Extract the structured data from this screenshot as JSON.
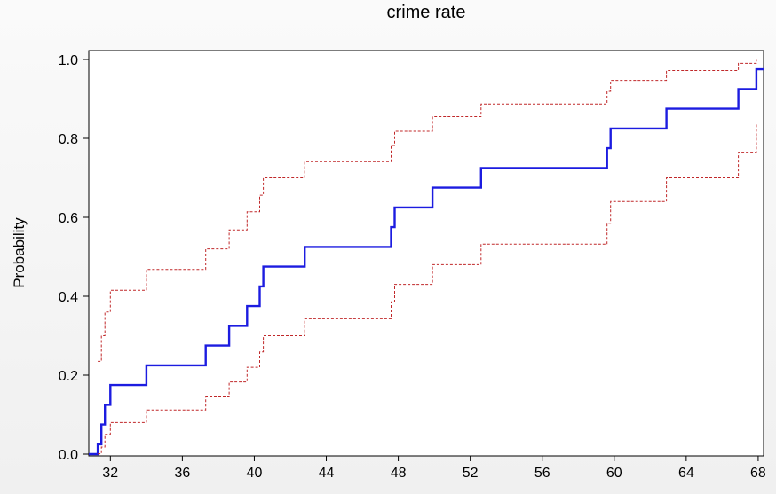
{
  "chart_data": {
    "type": "line",
    "title": "crime rate",
    "xlabel": "",
    "ylabel": "Probability",
    "xlim": [
      30.8,
      68.3
    ],
    "ylim": [
      0,
      1
    ],
    "xticks": [
      32,
      36,
      40,
      44,
      48,
      52,
      56,
      60,
      64,
      68
    ],
    "yticks": [
      0.0,
      0.2,
      0.4,
      0.6,
      0.8,
      1.0
    ],
    "xtick_labels": [
      "32",
      "36",
      "40",
      "44",
      "48",
      "52",
      "56",
      "60",
      "64",
      "68"
    ],
    "ytick_labels": [
      "0.0",
      "0.2",
      "0.4",
      "0.6",
      "0.8",
      "1.0"
    ],
    "grid": false,
    "colors": {
      "estimate": "#1c1ce0",
      "bounds": "#c0282a",
      "frame": "#000000"
    },
    "series": [
      {
        "role": "estimate",
        "style": "solid",
        "x": [
          30.8,
          31.3,
          31.5,
          31.7,
          32.0,
          34.0,
          37.3,
          38.6,
          39.6,
          40.3,
          40.5,
          42.8,
          47.6,
          47.8,
          49.9,
          52.6,
          59.6,
          59.8,
          62.9,
          66.9,
          67.9,
          68.3
        ],
        "y": [
          0.0,
          0.025,
          0.075,
          0.125,
          0.175,
          0.225,
          0.275,
          0.325,
          0.375,
          0.425,
          0.475,
          0.525,
          0.575,
          0.625,
          0.675,
          0.725,
          0.775,
          0.825,
          0.875,
          0.925,
          0.975,
          0.975
        ]
      },
      {
        "role": "upper",
        "style": "dashed",
        "x": [
          31.3,
          31.5,
          31.7,
          32.0,
          34.0,
          37.3,
          38.6,
          39.6,
          40.3,
          40.5,
          42.8,
          47.6,
          47.8,
          49.9,
          52.6,
          59.6,
          59.8,
          62.9,
          66.9,
          67.9
        ],
        "y": [
          0.235,
          0.3,
          0.36,
          0.415,
          0.468,
          0.52,
          0.568,
          0.614,
          0.656,
          0.7,
          0.741,
          0.782,
          0.818,
          0.855,
          0.887,
          0.919,
          0.947,
          0.972,
          0.99,
          0.999
        ]
      },
      {
        "role": "lower",
        "style": "dashed",
        "x": [
          31.3,
          31.5,
          31.7,
          32.0,
          34.0,
          37.3,
          38.6,
          39.6,
          40.3,
          40.5,
          42.8,
          47.6,
          47.8,
          49.9,
          52.6,
          59.6,
          59.8,
          62.9,
          66.9,
          67.9
        ],
        "y": [
          0.001,
          0.018,
          0.05,
          0.08,
          0.112,
          0.145,
          0.183,
          0.22,
          0.259,
          0.3,
          0.343,
          0.386,
          0.43,
          0.48,
          0.532,
          0.585,
          0.64,
          0.7,
          0.765,
          0.835
        ]
      }
    ]
  }
}
